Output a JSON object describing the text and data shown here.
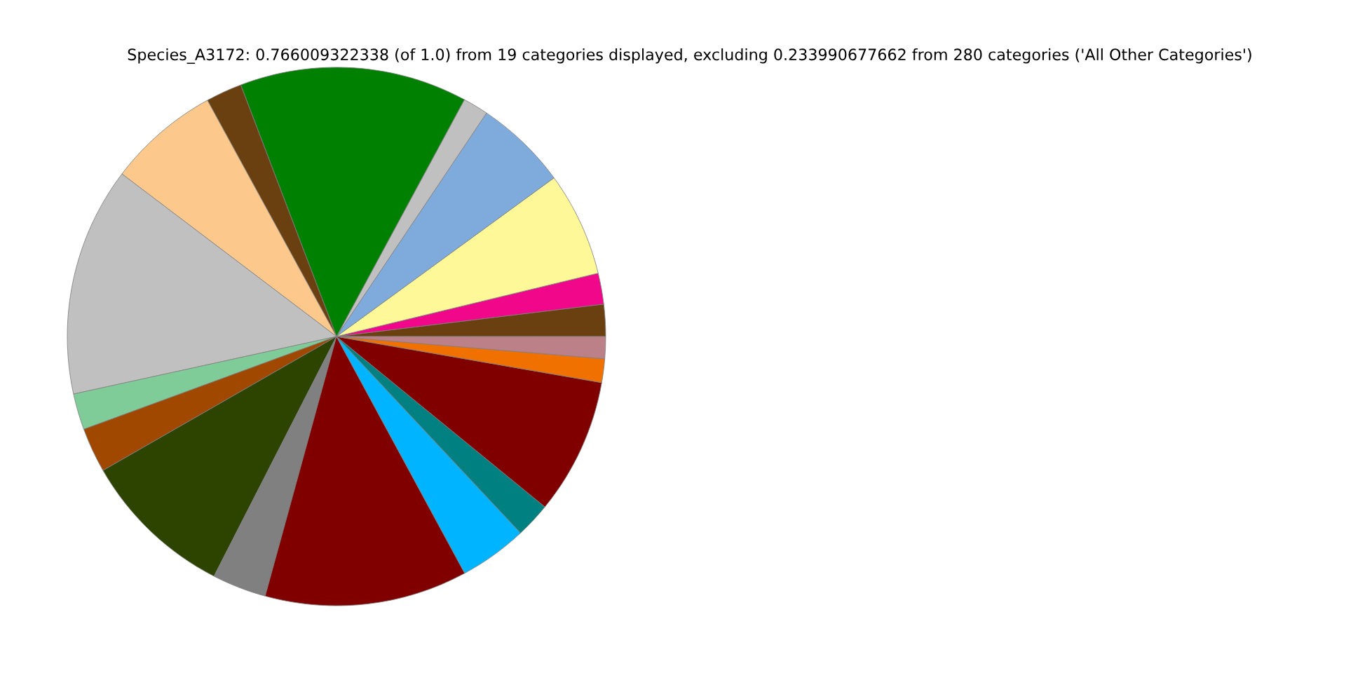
{
  "chart_data": {
    "type": "pie",
    "title": "Species_A3172: 0.766009322338 (of 1.0) from 19 categories displayed, excluding 0.233990677662 from 280 categories ('All Other Categories')",
    "categories": [
      null,
      null,
      null,
      null,
      null,
      null,
      null,
      null,
      null,
      null,
      null,
      null,
      null,
      null,
      null,
      null,
      null,
      null,
      null
    ],
    "values": [
      1.92,
      1.86,
      6.25,
      5.56,
      1.53,
      13.67,
      2.17,
      6.72,
      13.75,
      2.17,
      2.69,
      9.19,
      3.25,
      12.17,
      4.08,
      2.11,
      8.17,
      1.42,
      1.32
    ],
    "colors": [
      "#6b4010",
      "#f0078a",
      "#fff899",
      "#7eaadc",
      "#c0c0c0",
      "#008000",
      "#6b4010",
      "#fdc88c",
      "#c0c0c0",
      "#80cc99",
      "#a04800",
      "#2c4400",
      "#808080",
      "#800000",
      "#00b4ff",
      "#008080",
      "#800000",
      "#f07000",
      "#bc8088"
    ]
  }
}
